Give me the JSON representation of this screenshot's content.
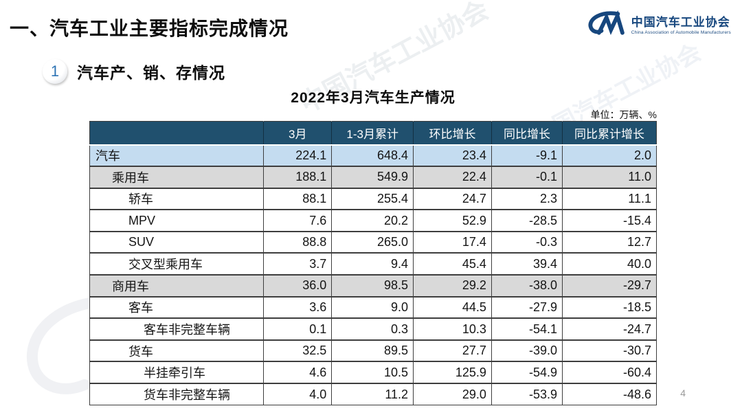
{
  "slide": {
    "main_title": "一、汽车工业主要指标完成情况",
    "section_number": "1",
    "section_title": "汽车产、销、存情况",
    "page_number": "4"
  },
  "logo": {
    "org_name_cn": "中国汽车工业协会",
    "org_name_en": "China Association of Automobile Manufacturers",
    "logo_color": "#17477e"
  },
  "watermark": {
    "text": "中国汽车工业协会"
  },
  "table": {
    "title": "2022年3月汽车生产情况",
    "unit_label": "单位：万辆、%",
    "columns": [
      "",
      "3月",
      "1-3月累计",
      "环比增长",
      "同比增长",
      "同比累计增长"
    ],
    "rows": [
      {
        "label": "汽车",
        "indent": 0,
        "style": "blue",
        "values": [
          "224.1",
          "648.4",
          "23.4",
          "-9.1",
          "2.0"
        ]
      },
      {
        "label": "乘用车",
        "indent": 1,
        "style": "gray",
        "values": [
          "188.1",
          "549.9",
          "22.4",
          "-0.1",
          "11.0"
        ]
      },
      {
        "label": "轿车",
        "indent": 2,
        "style": "white",
        "values": [
          "88.1",
          "255.4",
          "24.7",
          "2.3",
          "11.1"
        ]
      },
      {
        "label": "MPV",
        "indent": 2,
        "style": "white",
        "values": [
          "7.6",
          "20.2",
          "52.9",
          "-28.5",
          "-15.4"
        ]
      },
      {
        "label": "SUV",
        "indent": 2,
        "style": "white",
        "values": [
          "88.8",
          "265.0",
          "17.4",
          "-0.3",
          "12.7"
        ]
      },
      {
        "label": "交叉型乘用车",
        "indent": 2,
        "style": "white",
        "values": [
          "3.7",
          "9.4",
          "45.4",
          "39.4",
          "40.0"
        ]
      },
      {
        "label": "商用车",
        "indent": 1,
        "style": "gray",
        "values": [
          "36.0",
          "98.5",
          "29.2",
          "-38.0",
          "-29.7"
        ]
      },
      {
        "label": "客车",
        "indent": 2,
        "style": "white",
        "values": [
          "3.6",
          "9.0",
          "44.5",
          "-27.9",
          "-18.5"
        ]
      },
      {
        "label": "客车非完整车辆",
        "indent": 3,
        "style": "white",
        "values": [
          "0.1",
          "0.3",
          "10.3",
          "-54.1",
          "-24.7"
        ]
      },
      {
        "label": "货车",
        "indent": 2,
        "style": "white",
        "values": [
          "32.5",
          "89.5",
          "27.7",
          "-39.0",
          "-30.7"
        ]
      },
      {
        "label": "半挂牵引车",
        "indent": 3,
        "style": "white",
        "values": [
          "4.6",
          "10.5",
          "125.9",
          "-54.9",
          "-60.4"
        ]
      },
      {
        "label": "货车非完整车辆",
        "indent": 3,
        "style": "white",
        "values": [
          "4.0",
          "11.2",
          "29.0",
          "-53.9",
          "-48.6"
        ]
      }
    ]
  },
  "colors": {
    "header_bg": "#20506e",
    "row_highlight_blue": "#c4dcf0",
    "row_highlight_gray": "#d9d9d9",
    "border_dark": "#3d3d3d",
    "accent_blue": "#2e74b5",
    "logo_blue": "#17477e"
  }
}
